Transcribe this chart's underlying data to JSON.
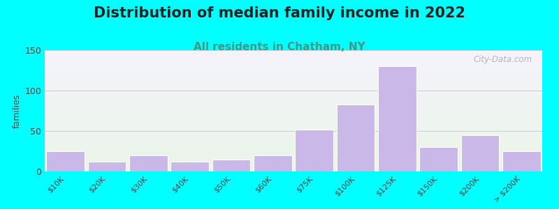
{
  "title": "Distribution of median family income in 2022",
  "subtitle": "All residents in Chatham, NY",
  "ylabel": "families",
  "background_outer": "#00FFFF",
  "bar_color": "#c9b8e8",
  "bar_edgecolor": "#ffffff",
  "categories": [
    "$10K",
    "$20K",
    "$30K",
    "$40K",
    "$50K",
    "$60K",
    "$75K",
    "$100K",
    "$125K",
    "$150K",
    "$200K",
    "> $200K"
  ],
  "values": [
    25,
    12,
    20,
    12,
    15,
    20,
    52,
    83,
    130,
    30,
    45,
    25
  ],
  "ylim": [
    0,
    150
  ],
  "yticks": [
    0,
    50,
    100,
    150
  ],
  "title_fontsize": 15,
  "subtitle_fontsize": 11,
  "title_color": "#222222",
  "subtitle_color": "#3a9a8a",
  "ylabel_fontsize": 9,
  "watermark_text": "City-Data.com",
  "watermark_color": "#aaaaaa",
  "grad_top": "#f5f3fc",
  "grad_bottom": "#eaf5e8"
}
